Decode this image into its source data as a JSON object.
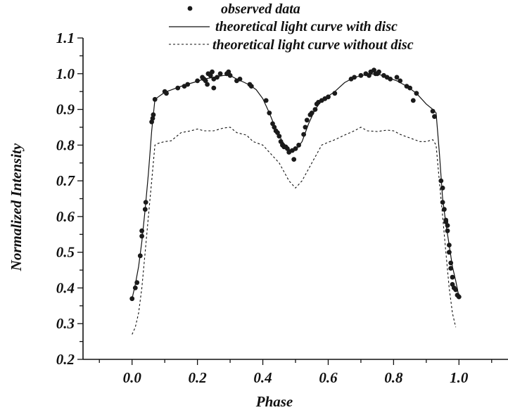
{
  "chart_data": {
    "type": "line",
    "title": "",
    "xlabel": "Phase",
    "ylabel": "Normalized Intensity",
    "xlim": [
      -0.15,
      1.15
    ],
    "ylim": [
      0.2,
      1.1
    ],
    "grid": false,
    "legend_position": "top-center",
    "x_ticks": [
      0.0,
      0.2,
      0.4,
      0.6,
      0.8,
      1.0
    ],
    "x_tick_labels": [
      "0.0",
      "0.2",
      "0.4",
      "0.6",
      "0.8",
      "1.0"
    ],
    "y_ticks": [
      0.2,
      0.3,
      0.4,
      0.5,
      0.6,
      0.7,
      0.8,
      0.9,
      1.0,
      1.1
    ],
    "y_tick_labels": [
      "0.2",
      "0.3",
      "0.4",
      "0.5",
      "0.6",
      "0.7",
      "0.8",
      "0.9",
      "1.0",
      "1.1"
    ],
    "series": [
      {
        "name": "observed data",
        "kind": "scatter",
        "color": "#1a1a1a",
        "points": [
          [
            0.0,
            0.37
          ],
          [
            0.01,
            0.4
          ],
          [
            0.015,
            0.415
          ],
          [
            0.025,
            0.49
          ],
          [
            0.03,
            0.545
          ],
          [
            0.03,
            0.56
          ],
          [
            0.04,
            0.62
          ],
          [
            0.042,
            0.64
          ],
          [
            0.06,
            0.865
          ],
          [
            0.063,
            0.875
          ],
          [
            0.065,
            0.885
          ],
          [
            0.07,
            0.928
          ],
          [
            0.1,
            0.95
          ],
          [
            0.105,
            0.945
          ],
          [
            0.14,
            0.96
          ],
          [
            0.16,
            0.965
          ],
          [
            0.17,
            0.97
          ],
          [
            0.2,
            0.98
          ],
          [
            0.215,
            0.99
          ],
          [
            0.22,
            0.985
          ],
          [
            0.225,
            0.98
          ],
          [
            0.23,
            0.97
          ],
          [
            0.233,
            1.0
          ],
          [
            0.24,
            0.995
          ],
          [
            0.245,
            1.005
          ],
          [
            0.25,
            0.96
          ],
          [
            0.25,
            0.985
          ],
          [
            0.26,
            0.99
          ],
          [
            0.27,
            1.0
          ],
          [
            0.29,
            1.0
          ],
          [
            0.295,
            1.005
          ],
          [
            0.3,
            0.995
          ],
          [
            0.32,
            0.98
          ],
          [
            0.33,
            0.985
          ],
          [
            0.36,
            0.97
          ],
          [
            0.365,
            0.965
          ],
          [
            0.41,
            0.925
          ],
          [
            0.42,
            0.89
          ],
          [
            0.43,
            0.86
          ],
          [
            0.435,
            0.85
          ],
          [
            0.44,
            0.84
          ],
          [
            0.445,
            0.835
          ],
          [
            0.45,
            0.825
          ],
          [
            0.455,
            0.81
          ],
          [
            0.46,
            0.8
          ],
          [
            0.465,
            0.795
          ],
          [
            0.47,
            0.795
          ],
          [
            0.475,
            0.79
          ],
          [
            0.48,
            0.78
          ],
          [
            0.49,
            0.785
          ],
          [
            0.495,
            0.76
          ],
          [
            0.5,
            0.79
          ],
          [
            0.51,
            0.8
          ],
          [
            0.525,
            0.83
          ],
          [
            0.53,
            0.85
          ],
          [
            0.535,
            0.87
          ],
          [
            0.545,
            0.885
          ],
          [
            0.55,
            0.89
          ],
          [
            0.56,
            0.9
          ],
          [
            0.565,
            0.915
          ],
          [
            0.57,
            0.92
          ],
          [
            0.58,
            0.925
          ],
          [
            0.59,
            0.93
          ],
          [
            0.6,
            0.935
          ],
          [
            0.62,
            0.945
          ],
          [
            0.67,
            0.985
          ],
          [
            0.68,
            0.99
          ],
          [
            0.7,
            0.995
          ],
          [
            0.715,
            1.0
          ],
          [
            0.725,
            0.995
          ],
          [
            0.73,
            1.005
          ],
          [
            0.74,
            1.01
          ],
          [
            0.745,
            1.0
          ],
          [
            0.75,
            1.0
          ],
          [
            0.755,
            1.005
          ],
          [
            0.77,
            0.995
          ],
          [
            0.78,
            0.99
          ],
          [
            0.79,
            0.985
          ],
          [
            0.81,
            0.99
          ],
          [
            0.82,
            0.98
          ],
          [
            0.84,
            0.965
          ],
          [
            0.85,
            0.96
          ],
          [
            0.86,
            0.925
          ],
          [
            0.87,
            0.945
          ],
          [
            0.92,
            0.895
          ],
          [
            0.925,
            0.88
          ],
          [
            0.945,
            0.7
          ],
          [
            0.95,
            0.68
          ],
          [
            0.95,
            0.64
          ],
          [
            0.955,
            0.62
          ],
          [
            0.96,
            0.59
          ],
          [
            0.96,
            0.585
          ],
          [
            0.965,
            0.575
          ],
          [
            0.965,
            0.56
          ],
          [
            0.97,
            0.52
          ],
          [
            0.97,
            0.5
          ],
          [
            0.975,
            0.47
          ],
          [
            0.975,
            0.455
          ],
          [
            0.98,
            0.43
          ],
          [
            0.98,
            0.41
          ],
          [
            0.985,
            0.4
          ],
          [
            0.99,
            0.395
          ],
          [
            0.995,
            0.38
          ],
          [
            1.0,
            0.375
          ]
        ]
      },
      {
        "name": "theoretical light curve with disc",
        "kind": "line",
        "style": "solid",
        "color": "#111111",
        "points": [
          [
            0.0,
            0.37
          ],
          [
            0.01,
            0.41
          ],
          [
            0.02,
            0.46
          ],
          [
            0.03,
            0.53
          ],
          [
            0.04,
            0.62
          ],
          [
            0.05,
            0.72
          ],
          [
            0.06,
            0.84
          ],
          [
            0.07,
            0.928
          ],
          [
            0.08,
            0.935
          ],
          [
            0.1,
            0.948
          ],
          [
            0.13,
            0.958
          ],
          [
            0.16,
            0.968
          ],
          [
            0.19,
            0.976
          ],
          [
            0.22,
            0.985
          ],
          [
            0.25,
            0.99
          ],
          [
            0.28,
            0.995
          ],
          [
            0.3,
            0.995
          ],
          [
            0.32,
            0.985
          ],
          [
            0.34,
            0.977
          ],
          [
            0.36,
            0.968
          ],
          [
            0.38,
            0.955
          ],
          [
            0.4,
            0.93
          ],
          [
            0.42,
            0.89
          ],
          [
            0.44,
            0.845
          ],
          [
            0.46,
            0.81
          ],
          [
            0.48,
            0.787
          ],
          [
            0.5,
            0.785
          ],
          [
            0.52,
            0.81
          ],
          [
            0.54,
            0.86
          ],
          [
            0.56,
            0.9
          ],
          [
            0.58,
            0.925
          ],
          [
            0.6,
            0.937
          ],
          [
            0.62,
            0.95
          ],
          [
            0.65,
            0.975
          ],
          [
            0.68,
            0.99
          ],
          [
            0.72,
            0.998
          ],
          [
            0.75,
            1.0
          ],
          [
            0.78,
            0.99
          ],
          [
            0.81,
            0.98
          ],
          [
            0.84,
            0.965
          ],
          [
            0.87,
            0.945
          ],
          [
            0.9,
            0.915
          ],
          [
            0.92,
            0.9
          ],
          [
            0.93,
            0.89
          ],
          [
            0.94,
            0.78
          ],
          [
            0.95,
            0.65
          ],
          [
            0.96,
            0.58
          ],
          [
            0.97,
            0.52
          ],
          [
            0.98,
            0.46
          ],
          [
            0.99,
            0.42
          ],
          [
            1.0,
            0.375
          ]
        ]
      },
      {
        "name": "theoretical light curve without disc",
        "kind": "line",
        "style": "dashed",
        "color": "#111111",
        "points": [
          [
            0.0,
            0.27
          ],
          [
            0.01,
            0.29
          ],
          [
            0.02,
            0.33
          ],
          [
            0.03,
            0.4
          ],
          [
            0.04,
            0.5
          ],
          [
            0.05,
            0.6
          ],
          [
            0.06,
            0.7
          ],
          [
            0.07,
            0.8
          ],
          [
            0.08,
            0.805
          ],
          [
            0.1,
            0.81
          ],
          [
            0.12,
            0.812
          ],
          [
            0.13,
            0.82
          ],
          [
            0.15,
            0.835
          ],
          [
            0.18,
            0.84
          ],
          [
            0.2,
            0.845
          ],
          [
            0.22,
            0.84
          ],
          [
            0.25,
            0.84
          ],
          [
            0.28,
            0.848
          ],
          [
            0.3,
            0.85
          ],
          [
            0.32,
            0.835
          ],
          [
            0.35,
            0.828
          ],
          [
            0.37,
            0.81
          ],
          [
            0.4,
            0.8
          ],
          [
            0.42,
            0.78
          ],
          [
            0.45,
            0.75
          ],
          [
            0.48,
            0.7
          ],
          [
            0.5,
            0.68
          ],
          [
            0.52,
            0.7
          ],
          [
            0.55,
            0.75
          ],
          [
            0.58,
            0.8
          ],
          [
            0.6,
            0.808
          ],
          [
            0.62,
            0.815
          ],
          [
            0.65,
            0.828
          ],
          [
            0.68,
            0.84
          ],
          [
            0.7,
            0.85
          ],
          [
            0.72,
            0.84
          ],
          [
            0.75,
            0.838
          ],
          [
            0.78,
            0.842
          ],
          [
            0.8,
            0.84
          ],
          [
            0.82,
            0.83
          ],
          [
            0.85,
            0.82
          ],
          [
            0.88,
            0.81
          ],
          [
            0.9,
            0.81
          ],
          [
            0.92,
            0.815
          ],
          [
            0.93,
            0.8
          ],
          [
            0.94,
            0.7
          ],
          [
            0.95,
            0.6
          ],
          [
            0.96,
            0.5
          ],
          [
            0.97,
            0.4
          ],
          [
            0.98,
            0.33
          ],
          [
            0.99,
            0.29
          ]
        ]
      }
    ]
  }
}
